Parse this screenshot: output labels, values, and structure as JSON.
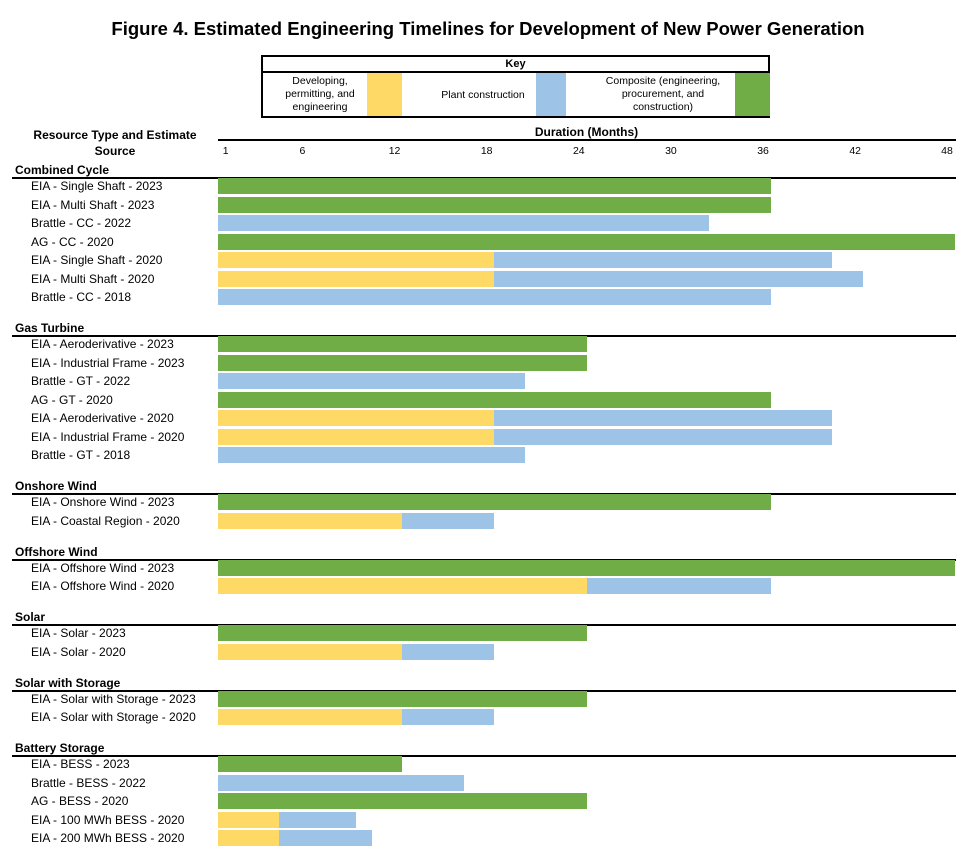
{
  "title": "Figure 4. Estimated Engineering Timelines for Development of New Power Generation",
  "key": {
    "title": "Key",
    "items": [
      {
        "label": "Developing, permitting, and engineering",
        "color": "#FFD966"
      },
      {
        "label": "Plant construction",
        "color": "#9DC3E6"
      },
      {
        "label": "Composite (engineering, procurement, and construction)",
        "color": "#70AD47"
      }
    ]
  },
  "chart_data": {
    "type": "bar",
    "orientation": "horizontal-stacked",
    "title": "Figure 4. Estimated Engineering Timelines for Development of New Power Generation",
    "ylabel": "Resource Type and Estimate Source",
    "xlabel": "Duration (Months)",
    "xticks": [
      1,
      6,
      12,
      18,
      24,
      30,
      36,
      42,
      48
    ],
    "xlim": [
      0,
      48
    ],
    "groups": [
      {
        "name": "Combined Cycle",
        "rows": [
          {
            "label": "EIA - Single Shaft - 2023",
            "composite": 36
          },
          {
            "label": "EIA - Multi Shaft - 2023",
            "composite": 36
          },
          {
            "label": "Brattle - CC - 2022",
            "construction": 32
          },
          {
            "label": "AG - CC - 2020",
            "composite": 48
          },
          {
            "label": "EIA - Single Shaft - 2020",
            "developing": 18,
            "construction": 22
          },
          {
            "label": "EIA - Multi Shaft - 2020",
            "developing": 18,
            "construction": 24
          },
          {
            "label": "Brattle - CC - 2018",
            "construction": 36
          }
        ]
      },
      {
        "name": "Gas Turbine",
        "rows": [
          {
            "label": "EIA - Aeroderivative - 2023",
            "composite": 24
          },
          {
            "label": "EIA - Industrial Frame - 2023",
            "composite": 24
          },
          {
            "label": "Brattle - GT - 2022",
            "construction": 20
          },
          {
            "label": "AG - GT - 2020",
            "composite": 36
          },
          {
            "label": "EIA - Aeroderivative - 2020",
            "developing": 18,
            "construction": 22
          },
          {
            "label": "EIA - Industrial Frame - 2020",
            "developing": 18,
            "construction": 22
          },
          {
            "label": "Brattle - GT - 2018",
            "construction": 20
          }
        ]
      },
      {
        "name": "Onshore Wind",
        "rows": [
          {
            "label": "EIA - Onshore Wind - 2023",
            "composite": 36
          },
          {
            "label": "EIA - Coastal Region - 2020",
            "developing": 12,
            "construction": 6
          }
        ]
      },
      {
        "name": "Offshore Wind",
        "rows": [
          {
            "label": "EIA - Offshore Wind - 2023",
            "composite": 48
          },
          {
            "label": "EIA - Offshore Wind - 2020",
            "developing": 24,
            "construction": 12
          }
        ]
      },
      {
        "name": "Solar",
        "rows": [
          {
            "label": "EIA - Solar - 2023",
            "composite": 24
          },
          {
            "label": "EIA - Solar - 2020",
            "developing": 12,
            "construction": 6
          }
        ]
      },
      {
        "name": "Solar with Storage",
        "rows": [
          {
            "label": "EIA - Solar with Storage - 2023",
            "composite": 24
          },
          {
            "label": "EIA - Solar with Storage - 2020",
            "developing": 12,
            "construction": 6
          }
        ]
      },
      {
        "name": "Battery Storage",
        "rows": [
          {
            "label": "EIA - BESS - 2023",
            "composite": 12
          },
          {
            "label": "Brattle - BESS - 2022",
            "construction": 16
          },
          {
            "label": "AG - BESS - 2020",
            "composite": 24
          },
          {
            "label": "EIA - 100 MWh BESS - 2020",
            "developing": 4,
            "construction": 5
          },
          {
            "label": "EIA - 200 MWh BESS - 2020",
            "developing": 4,
            "construction": 6
          }
        ]
      }
    ]
  }
}
